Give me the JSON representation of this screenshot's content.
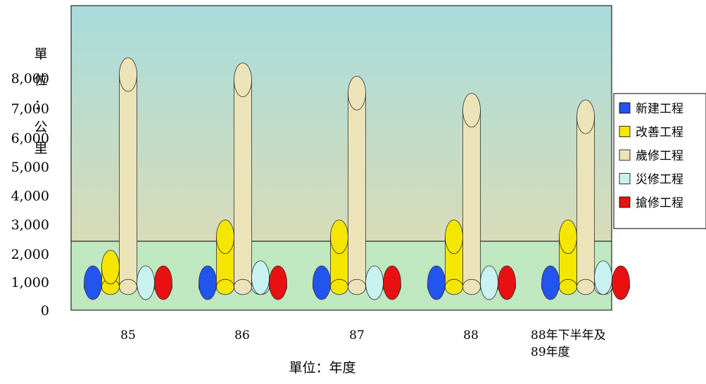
{
  "chart_data": {
    "type": "bar",
    "title": "",
    "ylabel": "單位：公里",
    "xlabel": "單位：年度",
    "ylim": [
      0,
      8000
    ],
    "yticks": [
      "0",
      "1,000",
      "2,000",
      "3,000",
      "4,000",
      "5,000",
      "6,000",
      "7,000",
      "8,000"
    ],
    "categories": [
      "85",
      "86",
      "87",
      "88",
      "88年下半年及89年度"
    ],
    "series": [
      {
        "name": "新建工程",
        "color": "#2255ee",
        "values": [
          40,
          40,
          40,
          40,
          40
        ]
      },
      {
        "name": "改善工程",
        "color": "#f5e600",
        "values": [
          750,
          1900,
          1900,
          1900,
          1900
        ]
      },
      {
        "name": "歲修工程",
        "color": "#ece4b8",
        "values": [
          8050,
          7850,
          7350,
          6700,
          6450
        ]
      },
      {
        "name": "災修工程",
        "color": "#c8f2f0",
        "values": [
          80,
          350,
          40,
          40,
          350
        ]
      },
      {
        "name": "搶修工程",
        "color": "#e81010",
        "values": [
          40,
          40,
          40,
          40,
          150
        ]
      }
    ],
    "legend_position": "right",
    "grid": false,
    "background": {
      "upper": "#a6d8d8",
      "lower": "#c0e8c0"
    }
  }
}
